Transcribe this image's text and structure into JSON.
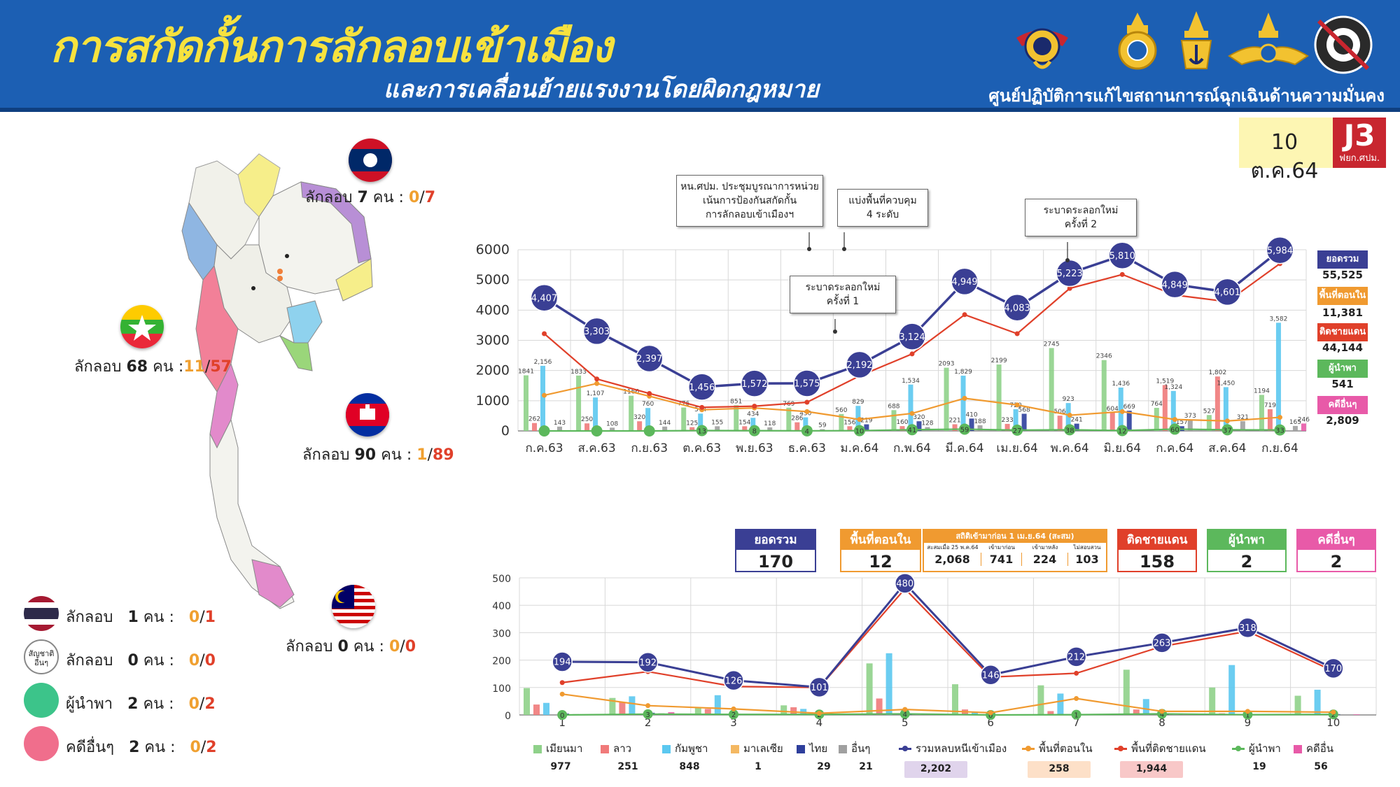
{
  "header": {
    "title": "การสกัดกั้นการลักลอบเข้าเมือง",
    "subtitle": "และการเคลื่อนย้ายแรงงานโดยผิดกฎหมาย",
    "center": "ศูนย์ปฏิบัติการแก้ไขสถานการณ์ฉุกเฉินด้านความมั่นคง",
    "emblems": [
      "navy-emblem",
      "army-emblem",
      "navy-crown-emblem",
      "air-force-emblem",
      "royal-thai-police-emblem"
    ]
  },
  "date_badge": {
    "date": "10 ต.ค.64",
    "code": "J3",
    "unit": "ฟยก.ศปม."
  },
  "map": {
    "laos": {
      "label": "ลักลอบ",
      "count": "7",
      "unit": "คน :",
      "a": "0",
      "b": "7"
    },
    "myanmar": {
      "label": "ลักลอบ",
      "count": "68",
      "unit": "คน :",
      "a": "11",
      "b": "57"
    },
    "cambodia": {
      "label": "ลักลอบ",
      "count": "90",
      "unit": "คน :",
      "a": "1",
      "b": "89"
    },
    "malaysia": {
      "label": "ลักลอบ",
      "count": "0",
      "unit": "คน :",
      "a": "0",
      "b": "0"
    }
  },
  "left_legend": [
    {
      "icon": "thai-flag-icon",
      "label": "ลักลอบ",
      "count": "1",
      "unit": "คน :",
      "a": "0",
      "b": "1"
    },
    {
      "icon": "other-nationality-icon",
      "icon_text": "สัญชาติ อื่นๆ",
      "label": "ลักลอบ",
      "count": "0",
      "unit": "คน :",
      "a": "0",
      "b": "0"
    },
    {
      "icon": "green-dot-icon",
      "label": "ผู้นำพา",
      "count": "2",
      "unit": "คน :",
      "a": "0",
      "b": "2"
    },
    {
      "icon": "pink-dot-icon",
      "label": "คดีอื่นๆ",
      "count": "2",
      "unit": "คน :",
      "a": "0",
      "b": "2"
    }
  ],
  "annotations": {
    "a1": [
      "หน.ศปม. ประชุมบูรณาการหน่วย",
      "เน้นการป้องกันสกัดกั้น",
      "การลักลอบเข้าเมืองฯ"
    ],
    "a2": [
      "แบ่งพื้นที่ควบคุม",
      "4 ระดับ"
    ],
    "a3": [
      "ระบาดระลอกใหม่",
      "ครั้งที่ 1"
    ],
    "a4": [
      "ระบาดระลอกใหม่",
      "ครั้งที่ 2"
    ]
  },
  "upper_side": [
    {
      "label": "ยอดรวม",
      "value": "55,525",
      "color": "#3a3f94"
    },
    {
      "label": "พื้นที่ตอนใน",
      "value": "11,381",
      "color": "#f09a30"
    },
    {
      "label": "ติดชายแดน",
      "value": "44,144",
      "color": "#e0402a"
    },
    {
      "label": "ผู้นำพา",
      "value": "541",
      "color": "#5cb85c"
    },
    {
      "label": "คดีอื่นๆ",
      "value": "2,809",
      "color": "#e85aa8"
    }
  ],
  "summary_boxes": {
    "total": {
      "label": "ยอดรวม",
      "value": "170",
      "color": "#3a3f94"
    },
    "inner": {
      "label": "พื้นที่ตอนใน",
      "value": "12",
      "color": "#f09a30"
    },
    "stats": {
      "label": "สถิติเข้ามาก่อน 1 เม.ย.64 (สะสม)",
      "cols": [
        {
          "label": "สะสมเมื่อ 25 พ.ค.64",
          "value": "2,068"
        },
        {
          "label": "เข้ามาก่อน",
          "value": "741"
        },
        {
          "label": "เข้ามาหลัง",
          "value": "224"
        },
        {
          "label": "ไม่สอบสวน",
          "value": "103"
        }
      ]
    },
    "border": {
      "label": "ติดชายแดน",
      "value": "158",
      "color": "#e0402a"
    },
    "guide": {
      "label": "ผู้นำพา",
      "value": "2",
      "color": "#5cb85c"
    },
    "other": {
      "label": "คดีอื่นๆ",
      "value": "2",
      "color": "#e85aa8"
    }
  },
  "lower_legend": [
    {
      "label": "เมียนมา",
      "value": "977",
      "color": "#8fd18a",
      "kind": "bar"
    },
    {
      "label": "ลาว",
      "value": "251",
      "color": "#f07a7a",
      "kind": "bar"
    },
    {
      "label": "กัมพูชา",
      "value": "848",
      "color": "#5bc8f0",
      "kind": "bar"
    },
    {
      "label": "มาเลเซีย",
      "value": "1",
      "color": "#f4b862",
      "kind": "bar"
    },
    {
      "label": "ไทย",
      "value": "29",
      "color": "#2e3f9c",
      "kind": "bar"
    },
    {
      "label": "อื่นๆ",
      "value": "21",
      "color": "#a0a0a0",
      "kind": "bar"
    },
    {
      "label": "รวมหลบหนีเข้าเมือง",
      "value": "2,202",
      "color": "#3a3f94",
      "kind": "line",
      "hl": "#e0d4ec"
    },
    {
      "label": "พื้นที่ตอนใน",
      "value": "258",
      "color": "#f09a30",
      "kind": "line",
      "hl": "#fde0c8"
    },
    {
      "label": "พื้นที่ติดชายแดน",
      "value": "1,944",
      "color": "#e0402a",
      "kind": "line",
      "hl": "#f8c8c8"
    },
    {
      "label": "ผู้นำพา",
      "value": "19",
      "color": "#5cb85c",
      "kind": "line"
    },
    {
      "label": "คดีอื่น",
      "value": "56",
      "color": "#e85aa8",
      "kind": "bar"
    }
  ],
  "chart_data": [
    {
      "type": "line",
      "categories": [
        "ก.ค.63",
        "ส.ค.63",
        "ก.ย.63",
        "ต.ค.63",
        "พ.ย.63",
        "ธ.ค.63",
        "ม.ค.64",
        "ก.พ.64",
        "มี.ค.64",
        "เม.ย.64",
        "พ.ค.64",
        "มิ.ย.64",
        "ก.ค.64",
        "ส.ค.64",
        "ก.ย.64"
      ],
      "ylim": [
        0,
        6000
      ],
      "yticks": [
        0,
        1000,
        2000,
        3000,
        4000,
        5000,
        6000
      ],
      "series": [
        {
          "name": "ยอดรวม",
          "kind": "line",
          "color": "#3a3f94",
          "values": [
            4407,
            3303,
            2397,
            1456,
            1572,
            1575,
            2192,
            3124,
            4949,
            4083,
            5223,
            5810,
            4849,
            4601,
            5984
          ],
          "labels": [
            "4,407",
            "3,303",
            "2,397",
            "1,456",
            "1,572",
            "1,575",
            "2,192",
            "3,124",
            "4,949",
            "4,083",
            "5,223",
            "5,810",
            "4,849",
            "4,601",
            "5,984"
          ]
        },
        {
          "name": "ติดชายแดน",
          "kind": "line",
          "color": "#e0402a",
          "values": [
            3220,
            1720,
            1240,
            780,
            820,
            950,
            1820,
            2550,
            3850,
            3220,
            4720,
            5180,
            4500,
            4280,
            5540
          ]
        },
        {
          "name": "พื้นที่ตอนใน",
          "kind": "line",
          "color": "#f09a30",
          "values": [
            1180,
            1570,
            1150,
            700,
            760,
            640,
            380,
            580,
            1080,
            860,
            520,
            640,
            380,
            330,
            450
          ]
        },
        {
          "name": "ผู้นำพา",
          "kind": "line",
          "color": "#5cb85c",
          "values": [
            0,
            0,
            0,
            13,
            8,
            4,
            10,
            41,
            59,
            27,
            38,
            12,
            60,
            37,
            33
          ],
          "labels": [
            "",
            "",
            "",
            "13",
            "8",
            "4",
            "10",
            "41",
            "59",
            "27",
            "38",
            "12",
            "60",
            "37",
            "33"
          ]
        }
      ],
      "bars": {
        "colors": [
          "#8fd18a",
          "#f07a7a",
          "#5bc8f0",
          "#2e3f9c",
          "#a0a0a0",
          "#e85aa8"
        ],
        "groups": [
          [
            1841,
            262,
            2156,
            0,
            143,
            0
          ],
          [
            1833,
            250,
            1107,
            0,
            108,
            0
          ],
          [
            1166,
            320,
            760,
            0,
            144,
            0
          ],
          [
            776,
            125,
            574,
            0,
            155,
            0
          ],
          [
            851,
            154,
            434,
            0,
            118,
            0
          ],
          [
            769,
            286,
            450,
            0,
            59,
            0
          ],
          [
            560,
            156,
            829,
            219,
            0,
            0
          ],
          [
            688,
            160,
            1534,
            320,
            128,
            0
          ],
          [
            2093,
            221,
            1829,
            410,
            188,
            0
          ],
          [
            2199,
            233,
            720,
            568,
            0,
            0
          ],
          [
            2745,
            506,
            923,
            241,
            0,
            0
          ],
          [
            2346,
            604,
            1436,
            669,
            0,
            0
          ],
          [
            764,
            1519,
            1324,
            157,
            373,
            0
          ],
          [
            527,
            1802,
            1450,
            0,
            321,
            0
          ],
          [
            1194,
            719,
            3582,
            0,
            165,
            246
          ]
        ],
        "labels": [
          [
            "1841",
            "262",
            "2,156",
            "",
            "143",
            ""
          ],
          [
            "1833",
            "250",
            "1,107",
            "",
            "108",
            ""
          ],
          [
            "1166",
            "320",
            "760",
            "",
            "144",
            ""
          ],
          [
            "776",
            "125",
            "574",
            "",
            "155",
            ""
          ],
          [
            "851",
            "154",
            "434",
            "",
            "118",
            ""
          ],
          [
            "769",
            "286",
            "450",
            "",
            "59",
            ""
          ],
          [
            "560",
            "156",
            "829",
            "219",
            "",
            ""
          ],
          [
            "688",
            "160",
            "1,534",
            "320",
            "128",
            ""
          ],
          [
            "2093",
            "221",
            "1,829",
            "410",
            "188",
            ""
          ],
          [
            "2199",
            "233",
            "720",
            "568",
            "",
            ""
          ],
          [
            "2745",
            "506",
            "923",
            "241",
            "",
            ""
          ],
          [
            "2346",
            "604",
            "1,436",
            "669",
            "",
            ""
          ],
          [
            "764",
            "1,519",
            "1,324",
            "157",
            "373",
            ""
          ],
          [
            "527",
            "1,802",
            "1,450",
            "",
            "321",
            ""
          ],
          [
            "1194",
            "719",
            "3,582",
            "",
            "165",
            "246"
          ]
        ]
      }
    },
    {
      "type": "line",
      "categories": [
        "1",
        "2",
        "3",
        "4",
        "5",
        "6",
        "7",
        "8",
        "9",
        "10"
      ],
      "ylim": [
        0,
        500
      ],
      "yticks": [
        0,
        100,
        200,
        300,
        400,
        500
      ],
      "series": [
        {
          "name": "รวมหลบหนีเข้าเมือง",
          "color": "#3a3f94",
          "values": [
            194,
            192,
            126,
            101,
            480,
            146,
            212,
            263,
            318,
            170
          ],
          "labels": [
            "194",
            "192",
            "126",
            "101",
            "480",
            "146",
            "212",
            "263",
            "318",
            "170"
          ]
        },
        {
          "name": "พื้นที่ติดชายแดน",
          "color": "#e0402a",
          "values": [
            118,
            158,
            104,
            100,
            460,
            138,
            152,
            250,
            305,
            160
          ]
        },
        {
          "name": "พื้นที่ตอนใน",
          "color": "#f09a30",
          "values": [
            76,
            34,
            22,
            6,
            20,
            8,
            60,
            13,
            13,
            10
          ]
        },
        {
          "name": "ผู้นำพา",
          "color": "#5cb85c",
          "values": [
            0,
            3,
            2,
            2,
            4,
            0,
            1,
            4,
            1,
            2
          ],
          "labels": [
            "0",
            "3",
            "2",
            "2",
            "4",
            "0",
            "1",
            "4",
            "1",
            "2"
          ]
        }
      ],
      "bars": {
        "colors": [
          "#8fd18a",
          "#f07a7a",
          "#5bc8f0",
          "#f4b862",
          "#2e3f9c",
          "#a0a0a0",
          "#e85aa8"
        ],
        "groups": [
          [
            98,
            38,
            44,
            0,
            5,
            3,
            0
          ],
          [
            62,
            46,
            68,
            0,
            8,
            6,
            10
          ],
          [
            28,
            22,
            72,
            0,
            4,
            4,
            3
          ],
          [
            35,
            28,
            22,
            0,
            6,
            3,
            2
          ],
          [
            188,
            60,
            225,
            0,
            3,
            2,
            4
          ],
          [
            112,
            20,
            10,
            0,
            2,
            2,
            2
          ],
          [
            108,
            14,
            78,
            0,
            3,
            2,
            3
          ],
          [
            165,
            20,
            58,
            0,
            4,
            2,
            2
          ],
          [
            100,
            6,
            182,
            0,
            2,
            2,
            2
          ],
          [
            70,
            4,
            92,
            1,
            2,
            2,
            2
          ]
        ]
      }
    }
  ]
}
